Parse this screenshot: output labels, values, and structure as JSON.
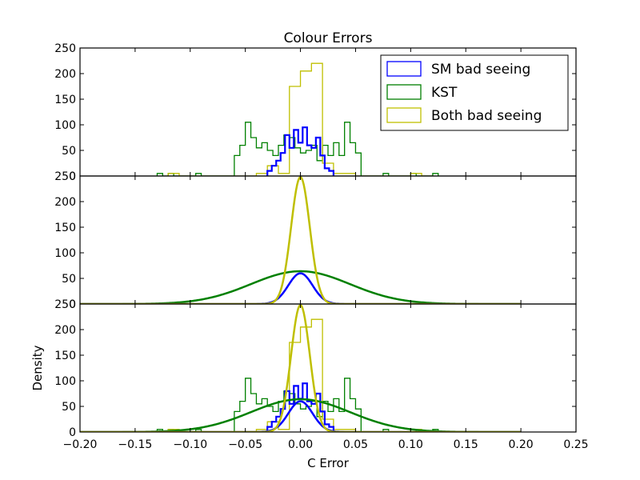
{
  "chart_data": {
    "type": "step-histogram with gaussian fits",
    "title": "Colour Errors",
    "xlabel": "C Error",
    "ylabel": "Density",
    "xlim": [
      -0.2,
      0.25
    ],
    "ylim": [
      0,
      250
    ],
    "x_ticks": [
      "−0.20",
      "−0.15",
      "−0.10",
      "−0.05",
      "0.00",
      "0.05",
      "0.10",
      "0.15",
      "0.20",
      "0.25"
    ],
    "x_tick_values": [
      -0.2,
      -0.15,
      -0.1,
      -0.05,
      0.0,
      0.05,
      0.1,
      0.15,
      0.2,
      0.25
    ],
    "y_ticks": [
      "0",
      "50",
      "100",
      "150",
      "200",
      "250"
    ],
    "y_tick_values": [
      0,
      50,
      100,
      150,
      200,
      250
    ],
    "legend": {
      "placement": "top-right",
      "entries": [
        {
          "label": "SM bad seeing",
          "color": "#0000ff"
        },
        {
          "label": "KST",
          "color": "#008000"
        },
        {
          "label": "Both bad seeing",
          "color": "#bfbf00"
        }
      ]
    },
    "panels": [
      {
        "name": "histograms",
        "shows": [
          "hist"
        ]
      },
      {
        "name": "gaussian-fits",
        "shows": [
          "fit"
        ]
      },
      {
        "name": "combined",
        "shows": [
          "hist",
          "fit"
        ]
      }
    ],
    "histograms": [
      {
        "series": "KST",
        "color": "#008000",
        "edges": [
          -0.13,
          -0.125,
          -0.12,
          -0.115,
          -0.11,
          -0.105,
          -0.1,
          -0.095,
          -0.09,
          -0.085,
          -0.08,
          -0.075,
          -0.07,
          -0.065,
          -0.06,
          -0.055,
          -0.05,
          -0.045,
          -0.04,
          -0.035,
          -0.03,
          -0.025,
          -0.02,
          -0.015,
          -0.01,
          -0.005,
          0.0,
          0.005,
          0.01,
          0.015,
          0.02,
          0.025,
          0.03,
          0.035,
          0.04,
          0.045,
          0.05,
          0.055,
          0.06,
          0.065,
          0.07,
          0.075,
          0.08,
          0.085,
          0.09,
          0.095,
          0.1,
          0.105,
          0.11,
          0.115,
          0.12,
          0.125
        ],
        "values": [
          5,
          0,
          5,
          0,
          0,
          0,
          0,
          5,
          0,
          0,
          0,
          0,
          0,
          0,
          40,
          60,
          105,
          75,
          55,
          65,
          50,
          40,
          60,
          80,
          75,
          55,
          45,
          50,
          60,
          30,
          60,
          40,
          65,
          40,
          105,
          65,
          45,
          0,
          0,
          0,
          0,
          5,
          0,
          0,
          0,
          0,
          5,
          0,
          0,
          0,
          5
        ]
      },
      {
        "series": "Both bad seeing",
        "color": "#bfbf00",
        "edges": [
          -0.12,
          -0.11,
          -0.1,
          -0.09,
          -0.08,
          -0.07,
          -0.06,
          -0.05,
          -0.04,
          -0.03,
          -0.02,
          -0.01,
          0.0,
          0.01,
          0.02,
          0.03,
          0.04,
          0.05,
          0.06,
          0.07,
          0.08,
          0.09,
          0.1,
          0.11,
          0.12
        ],
        "values": [
          5,
          0,
          0,
          0,
          0,
          0,
          0,
          0,
          5,
          20,
          5,
          175,
          205,
          220,
          25,
          5,
          5,
          0,
          0,
          0,
          0,
          0,
          5,
          0
        ]
      },
      {
        "series": "SM bad seeing",
        "color": "#0000ff",
        "edges": [
          -0.03,
          -0.026,
          -0.022,
          -0.018,
          -0.014,
          -0.01,
          -0.006,
          -0.002,
          0.002,
          0.006,
          0.01,
          0.014,
          0.018,
          0.022,
          0.026,
          0.03
        ],
        "values": [
          10,
          20,
          30,
          45,
          80,
          55,
          90,
          65,
          95,
          60,
          55,
          75,
          40,
          15,
          10
        ]
      }
    ],
    "fits": [
      {
        "series": "KST",
        "color": "#008000",
        "mean": 0.0,
        "peak": 64,
        "sigma": 0.045
      },
      {
        "series": "SM bad seeing",
        "color": "#0000ff",
        "mean": 0.0,
        "peak": 60,
        "sigma": 0.011
      },
      {
        "series": "Both bad seeing",
        "color": "#bfbf00",
        "mean": 0.0,
        "peak": 248,
        "sigma": 0.0085
      }
    ],
    "fit_range": [
      -0.2,
      0.2
    ]
  }
}
